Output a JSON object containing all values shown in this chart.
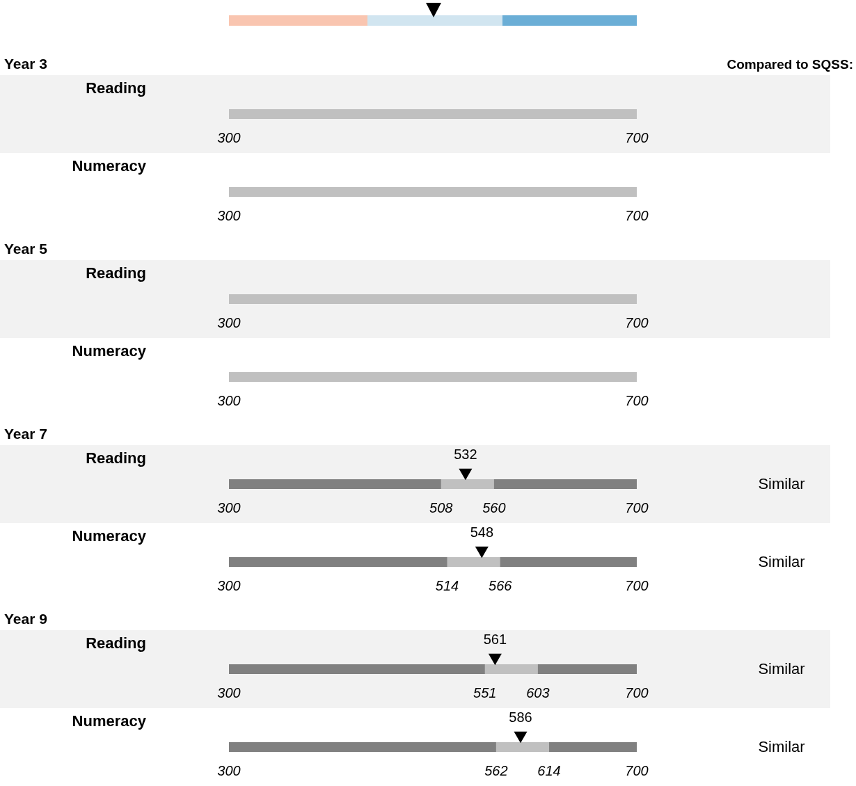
{
  "chart_data": [
    {
      "type": "scatter",
      "orientation": "horizontal",
      "title": "Year 3",
      "annotations": [
        "Compared to SQSS:"
      ],
      "categories": [
        "Reading"
      ],
      "xlim": [
        300,
        700
      ],
      "xticks": [
        300,
        700
      ],
      "values": [
        null
      ],
      "bands": [
        {
          "axis": "y",
          "from": "Reading",
          "to": "Reading",
          "color": "#f2f2f2"
        },
        {
          "axis": "x",
          "from": 300,
          "to": 700,
          "color": "#c0c0c0"
        }
      ]
    },
    {
      "type": "scatter",
      "orientation": "horizontal",
      "categories": [
        "Numeracy"
      ],
      "xlim": [
        300,
        700
      ],
      "xticks": [
        300,
        700
      ],
      "values": [
        null
      ],
      "bands": [
        {
          "axis": "x",
          "from": 300,
          "to": 700,
          "color": "#c0c0c0"
        }
      ]
    },
    {
      "type": "scatter",
      "orientation": "horizontal",
      "title": "Year 5",
      "categories": [
        "Reading"
      ],
      "xlim": [
        300,
        700
      ],
      "xticks": [
        300,
        700
      ],
      "values": [
        null
      ],
      "bands": [
        {
          "axis": "y",
          "from": "Reading",
          "to": "Reading",
          "color": "#f2f2f2"
        },
        {
          "axis": "x",
          "from": 300,
          "to": 700,
          "color": "#c0c0c0"
        }
      ]
    },
    {
      "type": "scatter",
      "orientation": "horizontal",
      "categories": [
        "Numeracy"
      ],
      "xlim": [
        300,
        700
      ],
      "xticks": [
        300,
        700
      ],
      "values": [
        null
      ],
      "bands": [
        {
          "axis": "x",
          "from": 300,
          "to": 700,
          "color": "#c0c0c0"
        }
      ]
    },
    {
      "type": "scatter",
      "orientation": "horizontal",
      "title": "Year 7",
      "categories": [
        "Reading"
      ],
      "xlim": [
        300,
        700
      ],
      "xticks": [
        300,
        508,
        560,
        700
      ],
      "values": [
        532
      ],
      "value_labels": [
        "532"
      ],
      "color": "#000000",
      "marker": "triangle",
      "annotations": [
        "Similar"
      ],
      "bands": [
        {
          "axis": "y",
          "from": "Reading",
          "to": "Reading",
          "color": "#f2f2f2"
        },
        {
          "axis": "x",
          "from": 300,
          "to": 700,
          "color": "#808080"
        },
        {
          "axis": "x",
          "from": 508,
          "to": 560,
          "color": "#c0c0c0"
        }
      ]
    },
    {
      "type": "scatter",
      "orientation": "horizontal",
      "categories": [
        "Numeracy"
      ],
      "xlim": [
        300,
        700
      ],
      "xticks": [
        300,
        514,
        566,
        700
      ],
      "values": [
        548
      ],
      "value_labels": [
        "548"
      ],
      "color": "#000000",
      "marker": "triangle",
      "annotations": [
        "Similar"
      ],
      "bands": [
        {
          "axis": "x",
          "from": 300,
          "to": 700,
          "color": "#808080"
        },
        {
          "axis": "x",
          "from": 514,
          "to": 566,
          "color": "#c0c0c0"
        }
      ]
    },
    {
      "type": "scatter",
      "orientation": "horizontal",
      "title": "Year 9",
      "categories": [
        "Reading"
      ],
      "xlim": [
        300,
        700
      ],
      "xticks": [
        300,
        551,
        603,
        700
      ],
      "values": [
        561
      ],
      "value_labels": [
        "561"
      ],
      "color": "#000000",
      "marker": "triangle",
      "annotations": [
        "Similar"
      ],
      "bands": [
        {
          "axis": "y",
          "from": "Reading",
          "to": "Reading",
          "color": "#f2f2f2"
        },
        {
          "axis": "x",
          "from": 300,
          "to": 700,
          "color": "#808080"
        },
        {
          "axis": "x",
          "from": 551,
          "to": 603,
          "color": "#c0c0c0"
        }
      ]
    },
    {
      "type": "scatter",
      "orientation": "horizontal",
      "categories": [
        "Numeracy"
      ],
      "xlim": [
        300,
        700
      ],
      "xticks": [
        300,
        562,
        614,
        700
      ],
      "values": [
        586
      ],
      "value_labels": [
        "586"
      ],
      "color": "#000000",
      "marker": "triangle",
      "annotations": [
        "Similar"
      ],
      "bands": [
        {
          "axis": "x",
          "from": 300,
          "to": 700,
          "color": "#808080"
        },
        {
          "axis": "x",
          "from": 562,
          "to": 614,
          "color": "#c0c0c0"
        }
      ]
    }
  ]
}
